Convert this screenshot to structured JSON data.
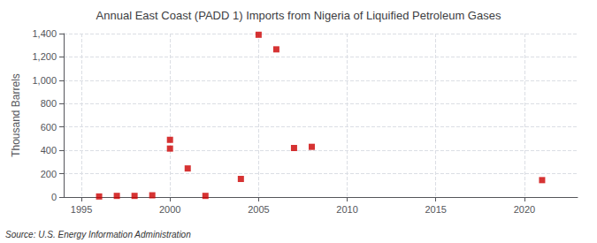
{
  "chart_data": {
    "type": "scatter",
    "title": "Annual East Coast (PADD 1) Imports from Nigeria of Liquified Petroleum Gases",
    "ylabel": "Thousand Barrels",
    "annotation": "Source: U.S. Energy Information Administration",
    "x": [
      1996,
      1997,
      1998,
      1999,
      2000,
      2000,
      2001,
      2002,
      2004,
      2005,
      2006,
      2007,
      2008,
      2021
    ],
    "values": [
      5,
      10,
      10,
      15,
      415,
      490,
      245,
      10,
      155,
      1390,
      1265,
      420,
      430,
      145
    ],
    "color": "#cc0000",
    "marker": "square",
    "xlim": [
      1994,
      2023
    ],
    "xticks": [
      1995,
      2000,
      2005,
      2010,
      2015,
      2020
    ],
    "ylim": [
      0,
      1400
    ],
    "yticks": [
      0,
      200,
      400,
      600,
      800,
      {
        "value": 1000,
        "label": "1,000"
      },
      {
        "value": 1200,
        "label": "1,200"
      },
      {
        "value": 1400,
        "label": "1,400"
      }
    ],
    "grid": true
  }
}
